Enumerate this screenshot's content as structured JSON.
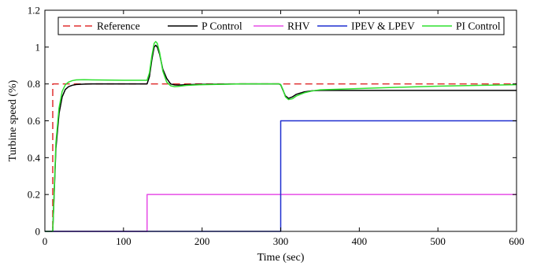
{
  "chart_data": {
    "type": "line",
    "title": "",
    "xlabel": "Time (sec)",
    "ylabel": "Turbine speed (%)",
    "xlim": [
      0,
      600
    ],
    "ylim": [
      0,
      1.2
    ],
    "xticks": [
      0,
      100,
      200,
      300,
      400,
      500,
      600
    ],
    "yticks": [
      0,
      0.2,
      0.4,
      0.6,
      0.8,
      1,
      1.2
    ],
    "xtick_labels": [
      "0",
      "100",
      "200",
      "300",
      "400",
      "500",
      "600"
    ],
    "ytick_labels": [
      "0",
      "0.2",
      "0.4",
      "0.6",
      "0.8",
      "1",
      "1.2"
    ],
    "grid": false,
    "legend_position": "top, horizontal",
    "series": [
      {
        "name": "Reference",
        "color": "#e03030",
        "dash": "dashed",
        "x": [
          0,
          10,
          10,
          600
        ],
        "y": [
          0,
          0,
          0.8,
          0.8
        ]
      },
      {
        "name": "P Control",
        "color": "#000000",
        "dash": "solid",
        "x": [
          0,
          10,
          14,
          18,
          22,
          26,
          30,
          35,
          40,
          50,
          60,
          80,
          100,
          120,
          130,
          133,
          136,
          139,
          141,
          143,
          146,
          150,
          155,
          160,
          165,
          170,
          180,
          200,
          250,
          298,
          300,
          303,
          306,
          310,
          315,
          320,
          330,
          340,
          350,
          400,
          450,
          500,
          550,
          600
        ],
        "y": [
          0,
          0,
          0.45,
          0.64,
          0.73,
          0.77,
          0.785,
          0.793,
          0.797,
          0.799,
          0.8,
          0.8,
          0.8,
          0.8,
          0.8,
          0.84,
          0.93,
          1.0,
          1.01,
          1.0,
          0.96,
          0.88,
          0.83,
          0.8,
          0.795,
          0.794,
          0.796,
          0.798,
          0.8,
          0.8,
          0.795,
          0.765,
          0.735,
          0.722,
          0.73,
          0.744,
          0.757,
          0.763,
          0.765,
          0.765,
          0.765,
          0.765,
          0.765,
          0.765
        ]
      },
      {
        "name": "RHV",
        "color": "#e64ee6",
        "dash": "solid",
        "x": [
          0,
          130,
          130,
          600
        ],
        "y": [
          0,
          0,
          0.2,
          0.2
        ]
      },
      {
        "name": "IPEV & LPEV",
        "color": "#1f2fd0",
        "dash": "solid",
        "x": [
          0,
          300,
          300,
          600
        ],
        "y": [
          0,
          0,
          0.6,
          0.6
        ]
      },
      {
        "name": "PI Control",
        "color": "#2ee02e",
        "dash": "solid",
        "x": [
          0,
          10,
          14,
          18,
          22,
          26,
          30,
          35,
          40,
          50,
          60,
          80,
          100,
          120,
          130,
          133,
          136,
          139,
          141,
          143,
          146,
          150,
          155,
          160,
          165,
          170,
          180,
          200,
          250,
          298,
          300,
          303,
          306,
          310,
          315,
          320,
          330,
          340,
          350,
          400,
          450,
          500,
          550,
          600
        ],
        "y": [
          0,
          0,
          0.48,
          0.67,
          0.76,
          0.795,
          0.81,
          0.818,
          0.822,
          0.823,
          0.822,
          0.821,
          0.82,
          0.82,
          0.82,
          0.86,
          0.95,
          1.02,
          1.03,
          1.02,
          0.97,
          0.87,
          0.81,
          0.79,
          0.785,
          0.787,
          0.792,
          0.796,
          0.8,
          0.8,
          0.797,
          0.768,
          0.73,
          0.715,
          0.72,
          0.735,
          0.752,
          0.762,
          0.768,
          0.775,
          0.782,
          0.788,
          0.792,
          0.796
        ]
      }
    ]
  }
}
